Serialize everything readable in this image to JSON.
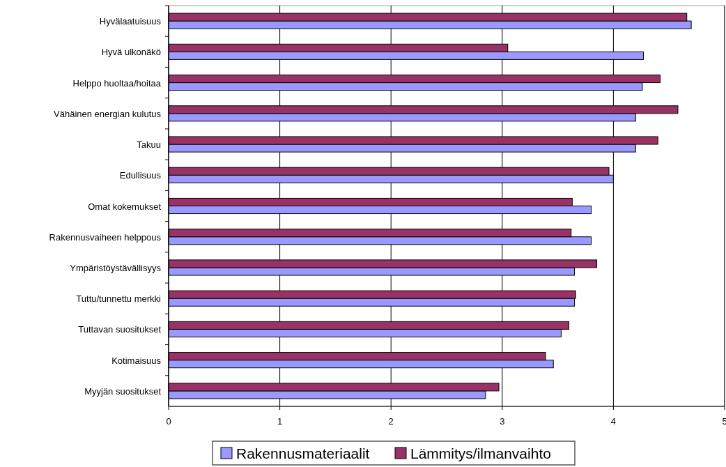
{
  "chart_data": {
    "type": "bar",
    "orientation": "horizontal",
    "categories": [
      "Hyvälaatuisuus",
      "Hyvä ulkonäkö",
      "Helppo huoltaa/hoitaa",
      "Vähäinen energian kulutus",
      "Takuu",
      "Edullisuus",
      "Omat kokemukset",
      "Rakennusvaiheen helppous",
      "Ympäristöystävällisyys",
      "Tuttu/tunnettu merkki",
      "Tuttavan suositukset",
      "Kotimaisuus",
      "Myyjän suositukset"
    ],
    "series": [
      {
        "name": "Rakennusmateriaalit",
        "color": "#9999ff",
        "values": [
          4.7,
          4.27,
          4.26,
          4.2,
          4.2,
          4.0,
          3.8,
          3.8,
          3.65,
          3.65,
          3.53,
          3.46,
          2.85
        ]
      },
      {
        "name": "Lämmitys/ilmanvaihto",
        "color": "#993366",
        "values": [
          4.66,
          3.05,
          4.42,
          4.58,
          4.4,
          3.96,
          3.63,
          3.62,
          3.85,
          3.66,
          3.6,
          3.39,
          2.97
        ]
      }
    ],
    "xlim": [
      0,
      5
    ],
    "xticks": [
      0,
      1,
      2,
      3,
      4,
      5
    ],
    "grid": "x",
    "legend": "bottom"
  }
}
